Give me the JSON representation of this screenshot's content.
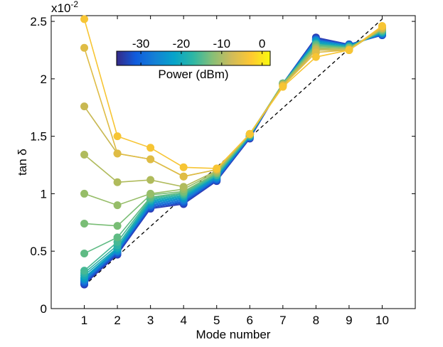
{
  "chart_data": {
    "type": "line",
    "xlabel": "Mode number",
    "ylabel": "tan δ",
    "y_multiplier_base": "x10",
    "y_multiplier_exp": "-2",
    "xlim": [
      0,
      11
    ],
    "ylim": [
      0,
      2.55
    ],
    "x_ticks": [
      "1",
      "2",
      "3",
      "4",
      "5",
      "6",
      "7",
      "8",
      "9",
      "10"
    ],
    "y_ticks": [
      "0",
      "0.5",
      "1",
      "1.5",
      "2",
      "2.5"
    ],
    "x": [
      1,
      2,
      3,
      4,
      5,
      6,
      7,
      8,
      9,
      10
    ],
    "colorbar": {
      "label": "Power (dBm)",
      "range": [
        -36,
        2
      ],
      "ticks": [
        "-30",
        "-20",
        "-10",
        "0"
      ],
      "colors": [
        "#352a87",
        "#0f5cdd",
        "#1481d6",
        "#06a4ca",
        "#2eb7a4",
        "#87bf77",
        "#d1bb59",
        "#fec832",
        "#f9fb0e"
      ]
    },
    "reference_line": {
      "style": "dashed",
      "from": [
        1,
        0.2
      ],
      "to": [
        10,
        2.52
      ]
    },
    "series": [
      {
        "power": -35,
        "color": "#2e3bb3",
        "values": [
          0.21,
          0.47,
          0.87,
          0.91,
          1.11,
          1.48,
          1.96,
          2.36,
          2.3,
          2.38
        ]
      },
      {
        "power": -33,
        "color": "#1f4fc7",
        "values": [
          0.22,
          0.48,
          0.88,
          0.92,
          1.12,
          1.49,
          1.96,
          2.35,
          2.3,
          2.38
        ]
      },
      {
        "power": -31,
        "color": "#1461d6",
        "values": [
          0.23,
          0.49,
          0.89,
          0.93,
          1.12,
          1.49,
          1.96,
          2.34,
          2.29,
          2.39
        ]
      },
      {
        "power": -29,
        "color": "#1a72d8",
        "values": [
          0.24,
          0.5,
          0.9,
          0.94,
          1.13,
          1.49,
          1.96,
          2.34,
          2.29,
          2.39
        ]
      },
      {
        "power": -27,
        "color": "#1781d2",
        "values": [
          0.25,
          0.5,
          0.91,
          0.95,
          1.14,
          1.5,
          1.96,
          2.33,
          2.29,
          2.4
        ]
      },
      {
        "power": -25,
        "color": "#0c90cb",
        "values": [
          0.26,
          0.51,
          0.92,
          0.96,
          1.14,
          1.5,
          1.96,
          2.33,
          2.29,
          2.4
        ]
      },
      {
        "power": -23,
        "color": "#0a9dc2",
        "values": [
          0.27,
          0.52,
          0.93,
          0.97,
          1.15,
          1.5,
          1.96,
          2.32,
          2.28,
          2.4
        ]
      },
      {
        "power": -21,
        "color": "#19a8b4",
        "values": [
          0.29,
          0.53,
          0.94,
          0.98,
          1.16,
          1.5,
          1.96,
          2.31,
          2.28,
          2.41
        ]
      },
      {
        "power": -19,
        "color": "#2eb2a6",
        "values": [
          0.31,
          0.55,
          0.95,
          0.99,
          1.16,
          1.51,
          1.96,
          2.3,
          2.28,
          2.41
        ]
      },
      {
        "power": -17,
        "color": "#46b895",
        "values": [
          0.33,
          0.58,
          0.96,
          1.0,
          1.17,
          1.51,
          1.96,
          2.3,
          2.27,
          2.42
        ]
      },
      {
        "power": -14,
        "color": "#5fbb84",
        "values": [
          0.48,
          0.62,
          0.97,
          1.01,
          1.18,
          1.51,
          1.96,
          2.29,
          2.27,
          2.42
        ]
      },
      {
        "power": -11,
        "color": "#79bd75",
        "values": [
          0.74,
          0.72,
          0.99,
          1.02,
          1.18,
          1.51,
          1.96,
          2.28,
          2.27,
          2.43
        ]
      },
      {
        "power": -8,
        "color": "#96bd68",
        "values": [
          1.0,
          0.9,
          1.0,
          1.04,
          1.19,
          1.52,
          1.95,
          2.27,
          2.26,
          2.43
        ]
      },
      {
        "power": -6,
        "color": "#b0bb5c",
        "values": [
          1.34,
          1.1,
          1.12,
          1.06,
          1.2,
          1.52,
          1.95,
          2.26,
          2.26,
          2.44
        ]
      },
      {
        "power": -4,
        "color": "#c8b852",
        "values": [
          1.76,
          1.35,
          1.3,
          1.15,
          1.21,
          1.52,
          1.94,
          2.25,
          2.25,
          2.44
        ]
      },
      {
        "power": -2,
        "color": "#dfbc45",
        "values": [
          2.27,
          1.35,
          1.3,
          1.15,
          1.21,
          1.52,
          1.94,
          2.23,
          2.25,
          2.45
        ]
      },
      {
        "power": 0,
        "color": "#f7c534",
        "values": [
          2.52,
          1.5,
          1.4,
          1.23,
          1.22,
          1.52,
          1.93,
          2.19,
          2.25,
          2.46
        ]
      }
    ]
  }
}
